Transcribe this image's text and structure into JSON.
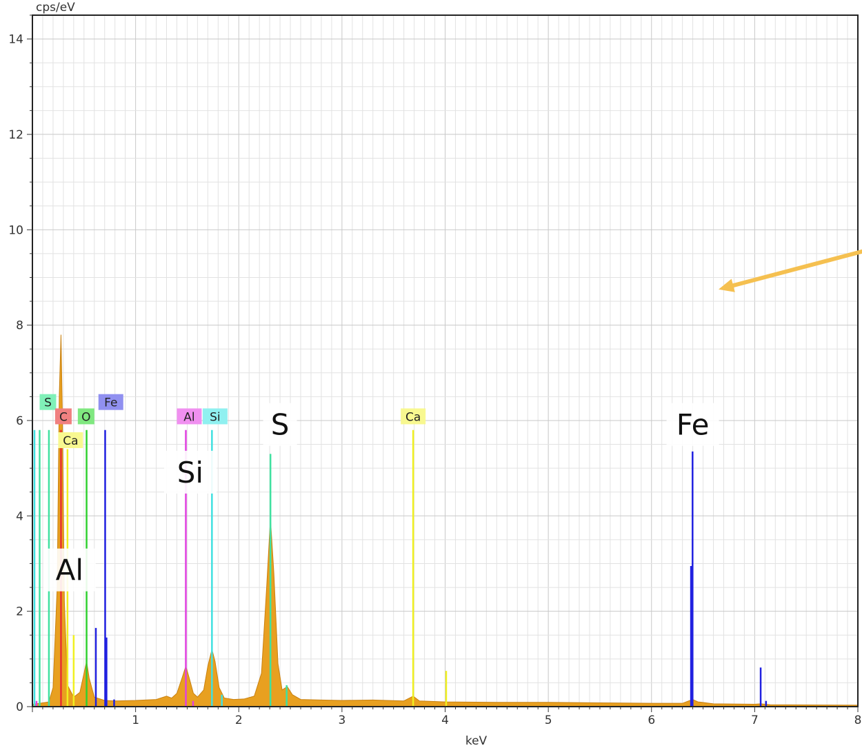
{
  "chart_data": {
    "type": "area",
    "xlabel": "keV",
    "ylabel": "cps/eV",
    "xlim": [
      0,
      8
    ],
    "ylim": [
      0,
      14.5
    ],
    "x_ticks": [
      "1",
      "2",
      "3",
      "4",
      "5",
      "6",
      "7",
      "8"
    ],
    "y_ticks": [
      "0",
      "2",
      "4",
      "6",
      "8",
      "10",
      "12",
      "14"
    ],
    "grid": true,
    "spectrum_color": "#E8A020",
    "spectrum": [
      [
        0.0,
        0.05
      ],
      [
        0.1,
        0.08
      ],
      [
        0.16,
        0.1
      ],
      [
        0.2,
        0.4
      ],
      [
        0.24,
        2.5
      ],
      [
        0.26,
        6.5
      ],
      [
        0.277,
        7.8
      ],
      [
        0.29,
        6.2
      ],
      [
        0.31,
        2.2
      ],
      [
        0.34,
        0.45
      ],
      [
        0.4,
        0.2
      ],
      [
        0.46,
        0.3
      ],
      [
        0.5,
        0.7
      ],
      [
        0.525,
        0.95
      ],
      [
        0.55,
        0.6
      ],
      [
        0.6,
        0.2
      ],
      [
        0.7,
        0.13
      ],
      [
        0.8,
        0.12
      ],
      [
        1.0,
        0.13
      ],
      [
        1.2,
        0.15
      ],
      [
        1.3,
        0.22
      ],
      [
        1.35,
        0.18
      ],
      [
        1.4,
        0.28
      ],
      [
        1.45,
        0.6
      ],
      [
        1.487,
        0.85
      ],
      [
        1.52,
        0.6
      ],
      [
        1.56,
        0.28
      ],
      [
        1.6,
        0.2
      ],
      [
        1.66,
        0.35
      ],
      [
        1.7,
        0.85
      ],
      [
        1.74,
        1.2
      ],
      [
        1.77,
        0.95
      ],
      [
        1.81,
        0.4
      ],
      [
        1.86,
        0.18
      ],
      [
        1.95,
        0.15
      ],
      [
        2.05,
        0.16
      ],
      [
        2.15,
        0.22
      ],
      [
        2.22,
        0.7
      ],
      [
        2.27,
        2.5
      ],
      [
        2.307,
        3.95
      ],
      [
        2.34,
        2.8
      ],
      [
        2.38,
        0.9
      ],
      [
        2.42,
        0.35
      ],
      [
        2.47,
        0.42
      ],
      [
        2.52,
        0.25
      ],
      [
        2.6,
        0.15
      ],
      [
        2.8,
        0.14
      ],
      [
        3.0,
        0.13
      ],
      [
        3.3,
        0.14
      ],
      [
        3.6,
        0.12
      ],
      [
        3.69,
        0.22
      ],
      [
        3.75,
        0.12
      ],
      [
        4.0,
        0.1
      ],
      [
        4.5,
        0.09
      ],
      [
        5.0,
        0.09
      ],
      [
        5.5,
        0.08
      ],
      [
        6.0,
        0.07
      ],
      [
        6.3,
        0.07
      ],
      [
        6.36,
        0.12
      ],
      [
        6.4,
        0.15
      ],
      [
        6.45,
        0.1
      ],
      [
        6.6,
        0.06
      ],
      [
        7.0,
        0.05
      ],
      [
        7.06,
        0.06
      ],
      [
        7.15,
        0.04
      ],
      [
        8.0,
        0.03
      ]
    ],
    "marker_lines": [
      {
        "element": "S",
        "color": "#40E0A0",
        "x": 0.07,
        "height": 5.8
      },
      {
        "element": "S",
        "color": "#40E0A0",
        "x": 0.16,
        "height": 5.8
      },
      {
        "element": "S",
        "color": "#40E0A0",
        "x": 2.307,
        "height": 5.3
      },
      {
        "element": "S",
        "color": "#40E0A0",
        "x": 2.464,
        "height": 0.45
      },
      {
        "element": "C",
        "color": "#E83030",
        "x": 0.277,
        "height": 5.8
      },
      {
        "element": "Ca",
        "color": "#F0F020",
        "x": 0.34,
        "height": 5.4
      },
      {
        "element": "Ca",
        "color": "#F0F020",
        "x": 0.4,
        "height": 1.5
      },
      {
        "element": "Ca",
        "color": "#F0F020",
        "x": 3.69,
        "height": 5.8
      },
      {
        "element": "Ca",
        "color": "#F0F020",
        "x": 4.01,
        "height": 0.75
      },
      {
        "element": "O",
        "color": "#30D030",
        "x": 0.525,
        "height": 5.8
      },
      {
        "element": "Fe",
        "color": "#2020E0",
        "x": 0.615,
        "height": 1.65
      },
      {
        "element": "Fe",
        "color": "#2020E0",
        "x": 0.705,
        "height": 5.8
      },
      {
        "element": "Fe",
        "color": "#2020E0",
        "x": 0.718,
        "height": 1.45
      },
      {
        "element": "Fe",
        "color": "#2020E0",
        "x": 0.792,
        "height": 0.15
      },
      {
        "element": "Fe",
        "color": "#2020E0",
        "x": 6.398,
        "height": 5.35
      },
      {
        "element": "Fe",
        "color": "#2020E0",
        "x": 6.383,
        "height": 2.95
      },
      {
        "element": "Fe",
        "color": "#2020E0",
        "x": 7.058,
        "height": 0.82
      },
      {
        "element": "Fe",
        "color": "#2020E0",
        "x": 7.11,
        "height": 0.12
      },
      {
        "element": "Al",
        "color": "#E040E0",
        "x": 1.487,
        "height": 5.8
      },
      {
        "element": "Al",
        "color": "#E040E0",
        "x": 1.557,
        "height": 0.12
      },
      {
        "element": "Al",
        "color": "#E040E0",
        "x": 0.04,
        "height": 0.12
      },
      {
        "element": "Si",
        "color": "#40E0E0",
        "x": 1.74,
        "height": 5.8
      },
      {
        "element": "Si",
        "color": "#40E0E0",
        "x": 0.02,
        "height": 5.8
      },
      {
        "element": "Si",
        "color": "#40E0E0",
        "x": 1.836,
        "height": 0.25
      }
    ],
    "element_tags": [
      {
        "text": "S",
        "color": "#80F0B8",
        "x": 0.07,
        "y": 6.25
      },
      {
        "text": "C",
        "color": "#F08080",
        "x": 0.22,
        "y": 5.95
      },
      {
        "text": "Ca",
        "color": "#F8F890",
        "x": 0.25,
        "y": 5.45
      },
      {
        "text": "O",
        "color": "#80E880",
        "x": 0.44,
        "y": 5.95
      },
      {
        "text": "Fe",
        "color": "#9090F0",
        "x": 0.64,
        "y": 6.25
      },
      {
        "text": "Al",
        "color": "#F090F0",
        "x": 1.4,
        "y": 5.95
      },
      {
        "text": "Si",
        "color": "#90F0F0",
        "x": 1.65,
        "y": 5.95
      },
      {
        "text": "Ca",
        "color": "#F8F890",
        "x": 3.57,
        "y": 5.95
      }
    ],
    "annotations": [
      {
        "text": "Al",
        "x": 0.36,
        "y": 2.65
      },
      {
        "text": "Si",
        "x": 1.53,
        "y": 4.7
      },
      {
        "text": "S",
        "x": 2.4,
        "y": 5.7
      },
      {
        "text": "Fe",
        "x": 6.4,
        "y": 5.7
      }
    ],
    "arrow": {
      "color": "#F5C050",
      "from": [
        8.05,
        9.55
      ],
      "to": [
        6.65,
        8.75
      ]
    }
  }
}
